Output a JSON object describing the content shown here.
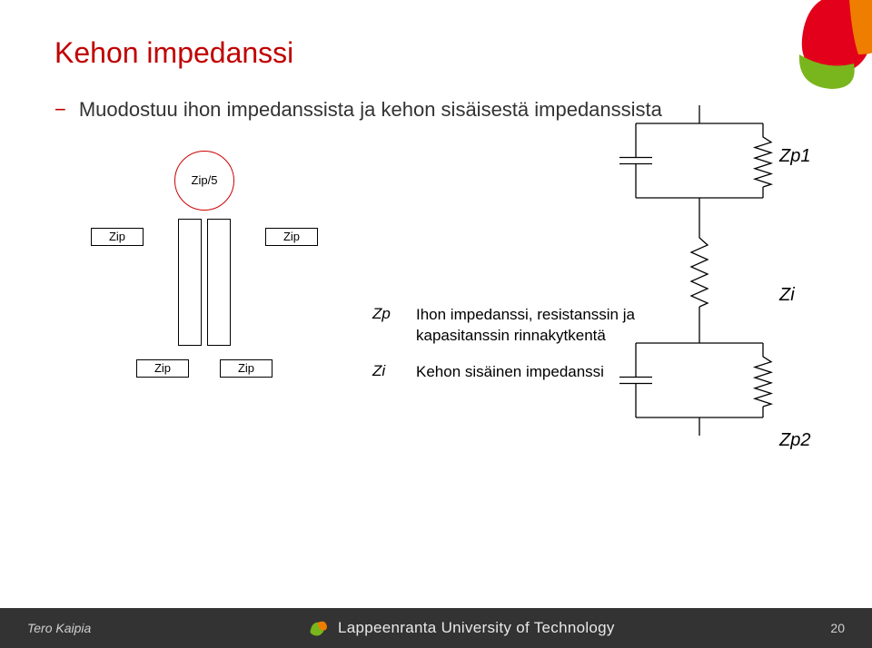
{
  "colors": {
    "title": "#c00000",
    "bullet_dash": "#c00000",
    "bullet_text": "#333333",
    "head_border": "#cc0000",
    "box_border": "#000000",
    "label_color": "#000000",
    "footer_bg": "#333333",
    "footer_text": "#d0d0d0",
    "deco_green": "#79b51c",
    "deco_orange": "#ef7d00",
    "deco_red": "#e2001a",
    "circuit_stroke": "#000000"
  },
  "title": "Kehon impedanssi",
  "bullet": {
    "dash": "−",
    "text": "Muodostuu ihon impedanssista ja kehon sisäisestä impedanssista"
  },
  "body_figure": {
    "head_label": "Zip/5",
    "arm_left": "Zip",
    "arm_right": "Zip",
    "leg_left": "Zip",
    "leg_right": "Zip"
  },
  "legend": {
    "rows": [
      {
        "symbol": "Zp",
        "text": "Ihon impedanssi, resistanssin ja kapasitanssin rinnakytkentä"
      },
      {
        "symbol": "Zi",
        "text": "Kehon sisäinen impedanssi"
      }
    ]
  },
  "circuit": {
    "labels": {
      "top": "Zp1",
      "mid": "Zi",
      "bottom": "Zp2"
    },
    "stroke_width": 1.3,
    "rc_block": {
      "width": 140,
      "height": 82,
      "cap_gap": 7,
      "cap_plate_len": 36,
      "res_w": 18,
      "res_n": 5,
      "res_amp": 9
    },
    "mid_resistor": {
      "length": 80,
      "res_w": 18,
      "res_n": 5,
      "res_amp": 9
    }
  },
  "footer": {
    "author": "Tero Kaipia",
    "university": "Lappeenranta University of Technology",
    "page": "20"
  }
}
